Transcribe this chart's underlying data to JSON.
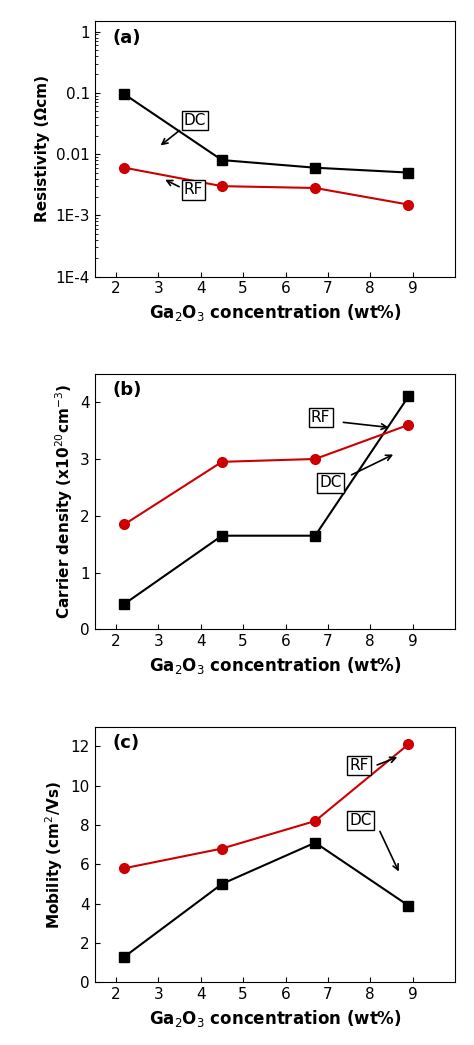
{
  "x": [
    2.2,
    4.5,
    6.7,
    8.9
  ],
  "resistivity_DC": [
    0.095,
    0.008,
    0.006,
    0.005
  ],
  "resistivity_RF": [
    0.006,
    0.003,
    0.0028,
    0.0015
  ],
  "carrier_DC": [
    0.45,
    1.65,
    1.65,
    4.1
  ],
  "carrier_RF": [
    1.85,
    2.95,
    3.0,
    3.6
  ],
  "mobility_DC": [
    1.3,
    5.0,
    7.1,
    3.9
  ],
  "mobility_RF": [
    5.8,
    6.8,
    8.2,
    12.1
  ],
  "color_DC": "#000000",
  "color_RF": "#cc0000",
  "xlabel": "Ga$_2$O$_3$ concentration (wt%)",
  "ylabel_a": "Resistivity (Ωcm)",
  "ylabel_b": "Carrier density (x10$^{20}$cm$^{-3}$)",
  "ylabel_c": "Mobility (cm$^2$/Vs)",
  "label_a": "(a)",
  "label_b": "(b)",
  "label_c": "(c)",
  "xlim": [
    1.5,
    10.0
  ],
  "xticks": [
    2,
    3,
    4,
    5,
    6,
    7,
    8,
    9
  ],
  "ylim_a_log": [
    0.0001,
    1.5
  ],
  "yticks_a": [
    0.0001,
    0.001,
    0.01,
    0.1,
    1
  ],
  "yticklabels_a": [
    "1E-4",
    "1E-3",
    "0.01",
    "0.1",
    "1"
  ],
  "ylim_b": [
    0,
    4.5
  ],
  "yticks_b": [
    0,
    1,
    2,
    3,
    4
  ],
  "ylim_c": [
    0,
    13
  ],
  "yticks_c": [
    0,
    2,
    4,
    6,
    8,
    10,
    12
  ]
}
